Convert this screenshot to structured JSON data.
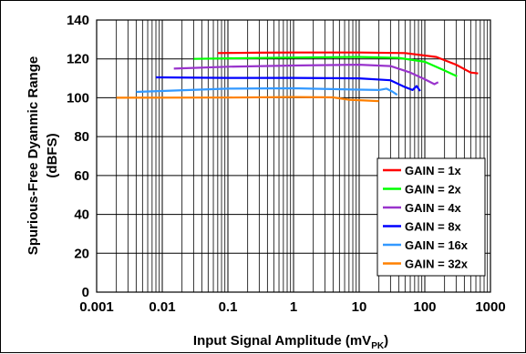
{
  "chart_data": {
    "type": "line",
    "xscale": "log",
    "xlim": [
      0.001,
      1000
    ],
    "ylim": [
      0,
      140
    ],
    "grid": true,
    "legend_position": "bottom-right",
    "xlabel": "Input Signal Amplitude (mV",
    "xlabel_sub": "PK",
    "xlabel_close": ")",
    "ylabel_line1": "Spurious-Free Dyanmic Range",
    "ylabel_line2": "(dBFS)",
    "x_ticks": [
      {
        "value": 0.001,
        "label": "0.001"
      },
      {
        "value": 0.01,
        "label": "0.01"
      },
      {
        "value": 0.1,
        "label": "0.1"
      },
      {
        "value": 1,
        "label": "1"
      },
      {
        "value": 10,
        "label": "10"
      },
      {
        "value": 100,
        "label": "100"
      },
      {
        "value": 1000,
        "label": "1000"
      }
    ],
    "y_ticks": [
      {
        "value": 0,
        "label": "0"
      },
      {
        "value": 20,
        "label": "20"
      },
      {
        "value": 40,
        "label": "40"
      },
      {
        "value": 60,
        "label": "60"
      },
      {
        "value": 80,
        "label": "80"
      },
      {
        "value": 100,
        "label": "100"
      },
      {
        "value": 120,
        "label": "120"
      },
      {
        "value": 140,
        "label": "140"
      }
    ],
    "series": [
      {
        "name": "GAIN = 1x",
        "color": "#ff0000",
        "points": [
          [
            0.07,
            123
          ],
          [
            0.3,
            123.2
          ],
          [
            1,
            123.3
          ],
          [
            10,
            123.3
          ],
          [
            50,
            123
          ],
          [
            150,
            121
          ],
          [
            300,
            117
          ],
          [
            500,
            113
          ],
          [
            650,
            112.5
          ]
        ]
      },
      {
        "name": "GAIN = 2x",
        "color": "#00ff00",
        "points": [
          [
            0.03,
            120
          ],
          [
            0.1,
            120.3
          ],
          [
            1,
            120.7
          ],
          [
            10,
            121
          ],
          [
            40,
            120.5
          ],
          [
            100,
            118.5
          ],
          [
            200,
            114
          ],
          [
            310,
            111
          ]
        ]
      },
      {
        "name": "GAIN = 4x",
        "color": "#9933cc",
        "points": [
          [
            0.015,
            115
          ],
          [
            0.1,
            116
          ],
          [
            1,
            116.6
          ],
          [
            10,
            117
          ],
          [
            30,
            116.3
          ],
          [
            60,
            113
          ],
          [
            100,
            109.5
          ],
          [
            140,
            107
          ],
          [
            160,
            108
          ]
        ]
      },
      {
        "name": "GAIN = 8x",
        "color": "#0000ff",
        "points": [
          [
            0.008,
            110.5
          ],
          [
            0.1,
            110.2
          ],
          [
            1,
            110.2
          ],
          [
            10,
            110
          ],
          [
            30,
            109
          ],
          [
            50,
            105.5
          ],
          [
            65,
            104
          ],
          [
            75,
            106
          ],
          [
            85,
            103.5
          ]
        ]
      },
      {
        "name": "GAIN = 16x",
        "color": "#3399ff",
        "points": [
          [
            0.004,
            103
          ],
          [
            0.1,
            104.7
          ],
          [
            1,
            104.9
          ],
          [
            10,
            104.2
          ],
          [
            20,
            104
          ],
          [
            26,
            104.7
          ],
          [
            32,
            103.2
          ],
          [
            38,
            101.5
          ]
        ]
      },
      {
        "name": "GAIN = 32x",
        "color": "#ff8000",
        "points": [
          [
            0.002,
            100
          ],
          [
            0.1,
            100.1
          ],
          [
            1,
            100.4
          ],
          [
            4,
            100.2
          ],
          [
            7,
            99
          ],
          [
            12,
            98.6
          ],
          [
            20,
            98.3
          ]
        ]
      }
    ]
  }
}
